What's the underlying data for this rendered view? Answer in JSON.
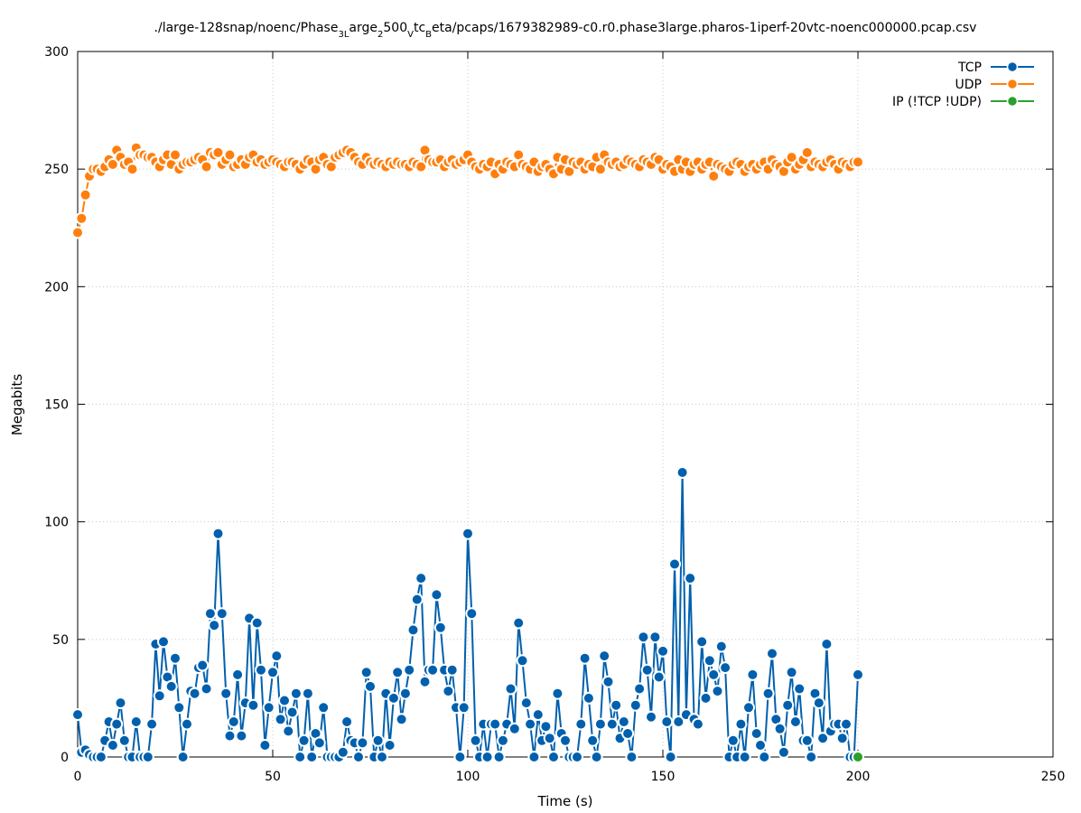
{
  "chart_data": {
    "type": "line",
    "title_parts": [
      "./large-128snap/noenc/Phase",
      "3L",
      "arge",
      "2",
      "500",
      "V",
      "tc",
      "B",
      "eta/pcaps/1679382989-c0.r0.phase3large.pharos-1iperf-20vtc-noenc000000.pcap.csv"
    ],
    "xlabel": "Time (s)",
    "ylabel": "Megabits",
    "xlim": [
      0,
      250
    ],
    "ylim": [
      0,
      300
    ],
    "xticks": [
      "0",
      "50",
      "100",
      "150",
      "200",
      "250"
    ],
    "yticks": [
      "0",
      "50",
      "100",
      "150",
      "200",
      "250",
      "300"
    ],
    "grid": true,
    "legend_position": "top-right",
    "series": [
      {
        "name": "TCP",
        "color": "#0060ad",
        "x": [
          0,
          1,
          2,
          3,
          4,
          5,
          6,
          7,
          8,
          9,
          10,
          11,
          12,
          13,
          14,
          15,
          16,
          17,
          18,
          19,
          20,
          21,
          22,
          23,
          24,
          25,
          26,
          27,
          28,
          29,
          30,
          31,
          32,
          33,
          34,
          35,
          36,
          37,
          38,
          39,
          40,
          41,
          42,
          43,
          44,
          45,
          46,
          47,
          48,
          49,
          50,
          51,
          52,
          53,
          54,
          55,
          56,
          57,
          58,
          59,
          60,
          61,
          62,
          63,
          64,
          65,
          66,
          67,
          68,
          69,
          70,
          71,
          72,
          73,
          74,
          75,
          76,
          77,
          78,
          79,
          80,
          81,
          82,
          83,
          84,
          85,
          86,
          87,
          88,
          89,
          90,
          91,
          92,
          93,
          94,
          95,
          96,
          97,
          98,
          99,
          100,
          101,
          102,
          103,
          104,
          105,
          106,
          107,
          108,
          109,
          110,
          111,
          112,
          113,
          114,
          115,
          116,
          117,
          118,
          119,
          120,
          121,
          122,
          123,
          124,
          125,
          126,
          127,
          128,
          129,
          130,
          131,
          132,
          133,
          134,
          135,
          136,
          137,
          138,
          139,
          140,
          141,
          142,
          143,
          144,
          145,
          146,
          147,
          148,
          149,
          150,
          151,
          152,
          153,
          154,
          155,
          156,
          157,
          158,
          159,
          160,
          161,
          162,
          163,
          164,
          165,
          166,
          167,
          168,
          169,
          170,
          171,
          172,
          173,
          174,
          175,
          176,
          177,
          178,
          179,
          180,
          181,
          182,
          183,
          184,
          185,
          186,
          187,
          188,
          189,
          190,
          191,
          192,
          193,
          194,
          195,
          196,
          197,
          198,
          199,
          200
        ],
        "y": [
          18,
          2,
          3,
          1,
          0,
          0,
          0,
          7,
          15,
          5,
          14,
          23,
          7,
          0,
          0,
          15,
          0,
          0,
          0,
          14,
          48,
          26,
          49,
          34,
          30,
          42,
          21,
          0,
          14,
          28,
          27,
          38,
          39,
          29,
          61,
          56,
          95,
          61,
          27,
          9,
          15,
          35,
          9,
          23,
          59,
          22,
          57,
          37,
          5,
          21,
          36,
          43,
          16,
          24,
          11,
          19,
          27,
          0,
          7,
          27,
          0,
          10,
          6,
          21,
          0,
          0,
          0,
          0,
          2,
          15,
          7,
          6,
          0,
          6,
          36,
          30,
          0,
          7,
          0,
          27,
          5,
          25,
          36,
          16,
          27,
          37,
          54,
          67,
          76,
          32,
          37,
          37,
          69,
          55,
          37,
          28,
          37,
          21,
          0,
          21,
          95,
          61,
          7,
          0,
          14,
          0,
          14,
          14,
          0,
          7,
          14,
          29,
          12,
          57,
          41,
          23,
          14,
          0,
          18,
          7,
          13,
          8,
          0,
          27,
          10,
          7,
          0,
          0,
          0,
          14,
          42,
          25,
          7,
          0,
          14,
          43,
          32,
          14,
          22,
          8,
          15,
          10,
          0,
          22,
          29,
          51,
          37,
          17,
          51,
          34,
          45,
          15,
          0,
          82,
          15,
          121,
          18,
          76,
          16,
          14,
          49,
          25,
          41,
          35,
          28,
          47,
          38,
          0,
          7,
          0,
          14,
          0,
          21,
          35,
          10,
          5,
          0,
          27,
          44,
          16,
          12,
          2,
          22,
          36,
          15,
          29,
          7,
          7,
          0,
          27,
          23,
          8,
          48,
          11,
          14,
          14,
          8,
          14,
          0,
          0,
          35
        ]
      },
      {
        "name": "UDP",
        "color": "#ff7f0e",
        "x": [
          0,
          1,
          2,
          3,
          4,
          5,
          6,
          7,
          8,
          9,
          10,
          11,
          12,
          13,
          14,
          15,
          16,
          17,
          18,
          19,
          20,
          21,
          22,
          23,
          24,
          25,
          26,
          27,
          28,
          29,
          30,
          31,
          32,
          33,
          34,
          35,
          36,
          37,
          38,
          39,
          40,
          41,
          42,
          43,
          44,
          45,
          46,
          47,
          48,
          49,
          50,
          51,
          52,
          53,
          54,
          55,
          56,
          57,
          58,
          59,
          60,
          61,
          62,
          63,
          64,
          65,
          66,
          67,
          68,
          69,
          70,
          71,
          72,
          73,
          74,
          75,
          76,
          77,
          78,
          79,
          80,
          81,
          82,
          83,
          84,
          85,
          86,
          87,
          88,
          89,
          90,
          91,
          92,
          93,
          94,
          95,
          96,
          97,
          98,
          99,
          100,
          101,
          102,
          103,
          104,
          105,
          106,
          107,
          108,
          109,
          110,
          111,
          112,
          113,
          114,
          115,
          116,
          117,
          118,
          119,
          120,
          121,
          122,
          123,
          124,
          125,
          126,
          127,
          128,
          129,
          130,
          131,
          132,
          133,
          134,
          135,
          136,
          137,
          138,
          139,
          140,
          141,
          142,
          143,
          144,
          145,
          146,
          147,
          148,
          149,
          150,
          151,
          152,
          153,
          154,
          155,
          156,
          157,
          158,
          159,
          160,
          161,
          162,
          163,
          164,
          165,
          166,
          167,
          168,
          169,
          170,
          171,
          172,
          173,
          174,
          175,
          176,
          177,
          178,
          179,
          180,
          181,
          182,
          183,
          184,
          185,
          186,
          187,
          188,
          189,
          190,
          191,
          192,
          193,
          194,
          195,
          196,
          197,
          198,
          199,
          200
        ],
        "y": [
          223,
          229,
          239,
          247,
          250,
          250,
          249,
          251,
          254,
          252,
          258,
          255,
          252,
          253,
          250,
          259,
          256,
          256,
          255,
          255,
          253,
          251,
          254,
          256,
          252,
          256,
          250,
          252,
          253,
          253,
          254,
          255,
          254,
          251,
          257,
          256,
          257,
          252,
          254,
          256,
          251,
          252,
          254,
          252,
          255,
          256,
          253,
          254,
          252,
          253,
          254,
          253,
          252,
          251,
          253,
          253,
          252,
          250,
          252,
          254,
          253,
          250,
          254,
          255,
          252,
          251,
          255,
          256,
          257,
          258,
          257,
          255,
          253,
          252,
          255,
          253,
          252,
          253,
          252,
          251,
          253,
          252,
          253,
          252,
          252,
          251,
          253,
          252,
          251,
          258,
          254,
          253,
          253,
          254,
          251,
          253,
          254,
          252,
          253,
          254,
          256,
          253,
          251,
          250,
          252,
          251,
          253,
          248,
          252,
          250,
          253,
          252,
          251,
          256,
          252,
          251,
          250,
          253,
          249,
          251,
          252,
          250,
          248,
          255,
          250,
          254,
          249,
          253,
          252,
          253,
          250,
          252,
          251,
          255,
          250,
          256,
          253,
          252,
          253,
          251,
          252,
          254,
          253,
          252,
          251,
          254,
          253,
          252,
          255,
          254,
          250,
          252,
          251,
          249,
          254,
          250,
          253,
          249,
          252,
          253,
          250,
          252,
          253,
          247,
          252,
          251,
          250,
          249,
          252,
          253,
          252,
          249,
          251,
          252,
          250,
          252,
          253,
          250,
          254,
          252,
          251,
          249,
          253,
          255,
          250,
          252,
          254,
          257,
          251,
          253,
          252,
          251,
          253,
          254,
          252,
          250,
          253,
          252,
          251,
          253,
          253
        ]
      },
      {
        "name": "IP (!TCP  !UDP)",
        "color": "#2ca02c",
        "x": [
          200
        ],
        "y": [
          0
        ]
      }
    ]
  }
}
